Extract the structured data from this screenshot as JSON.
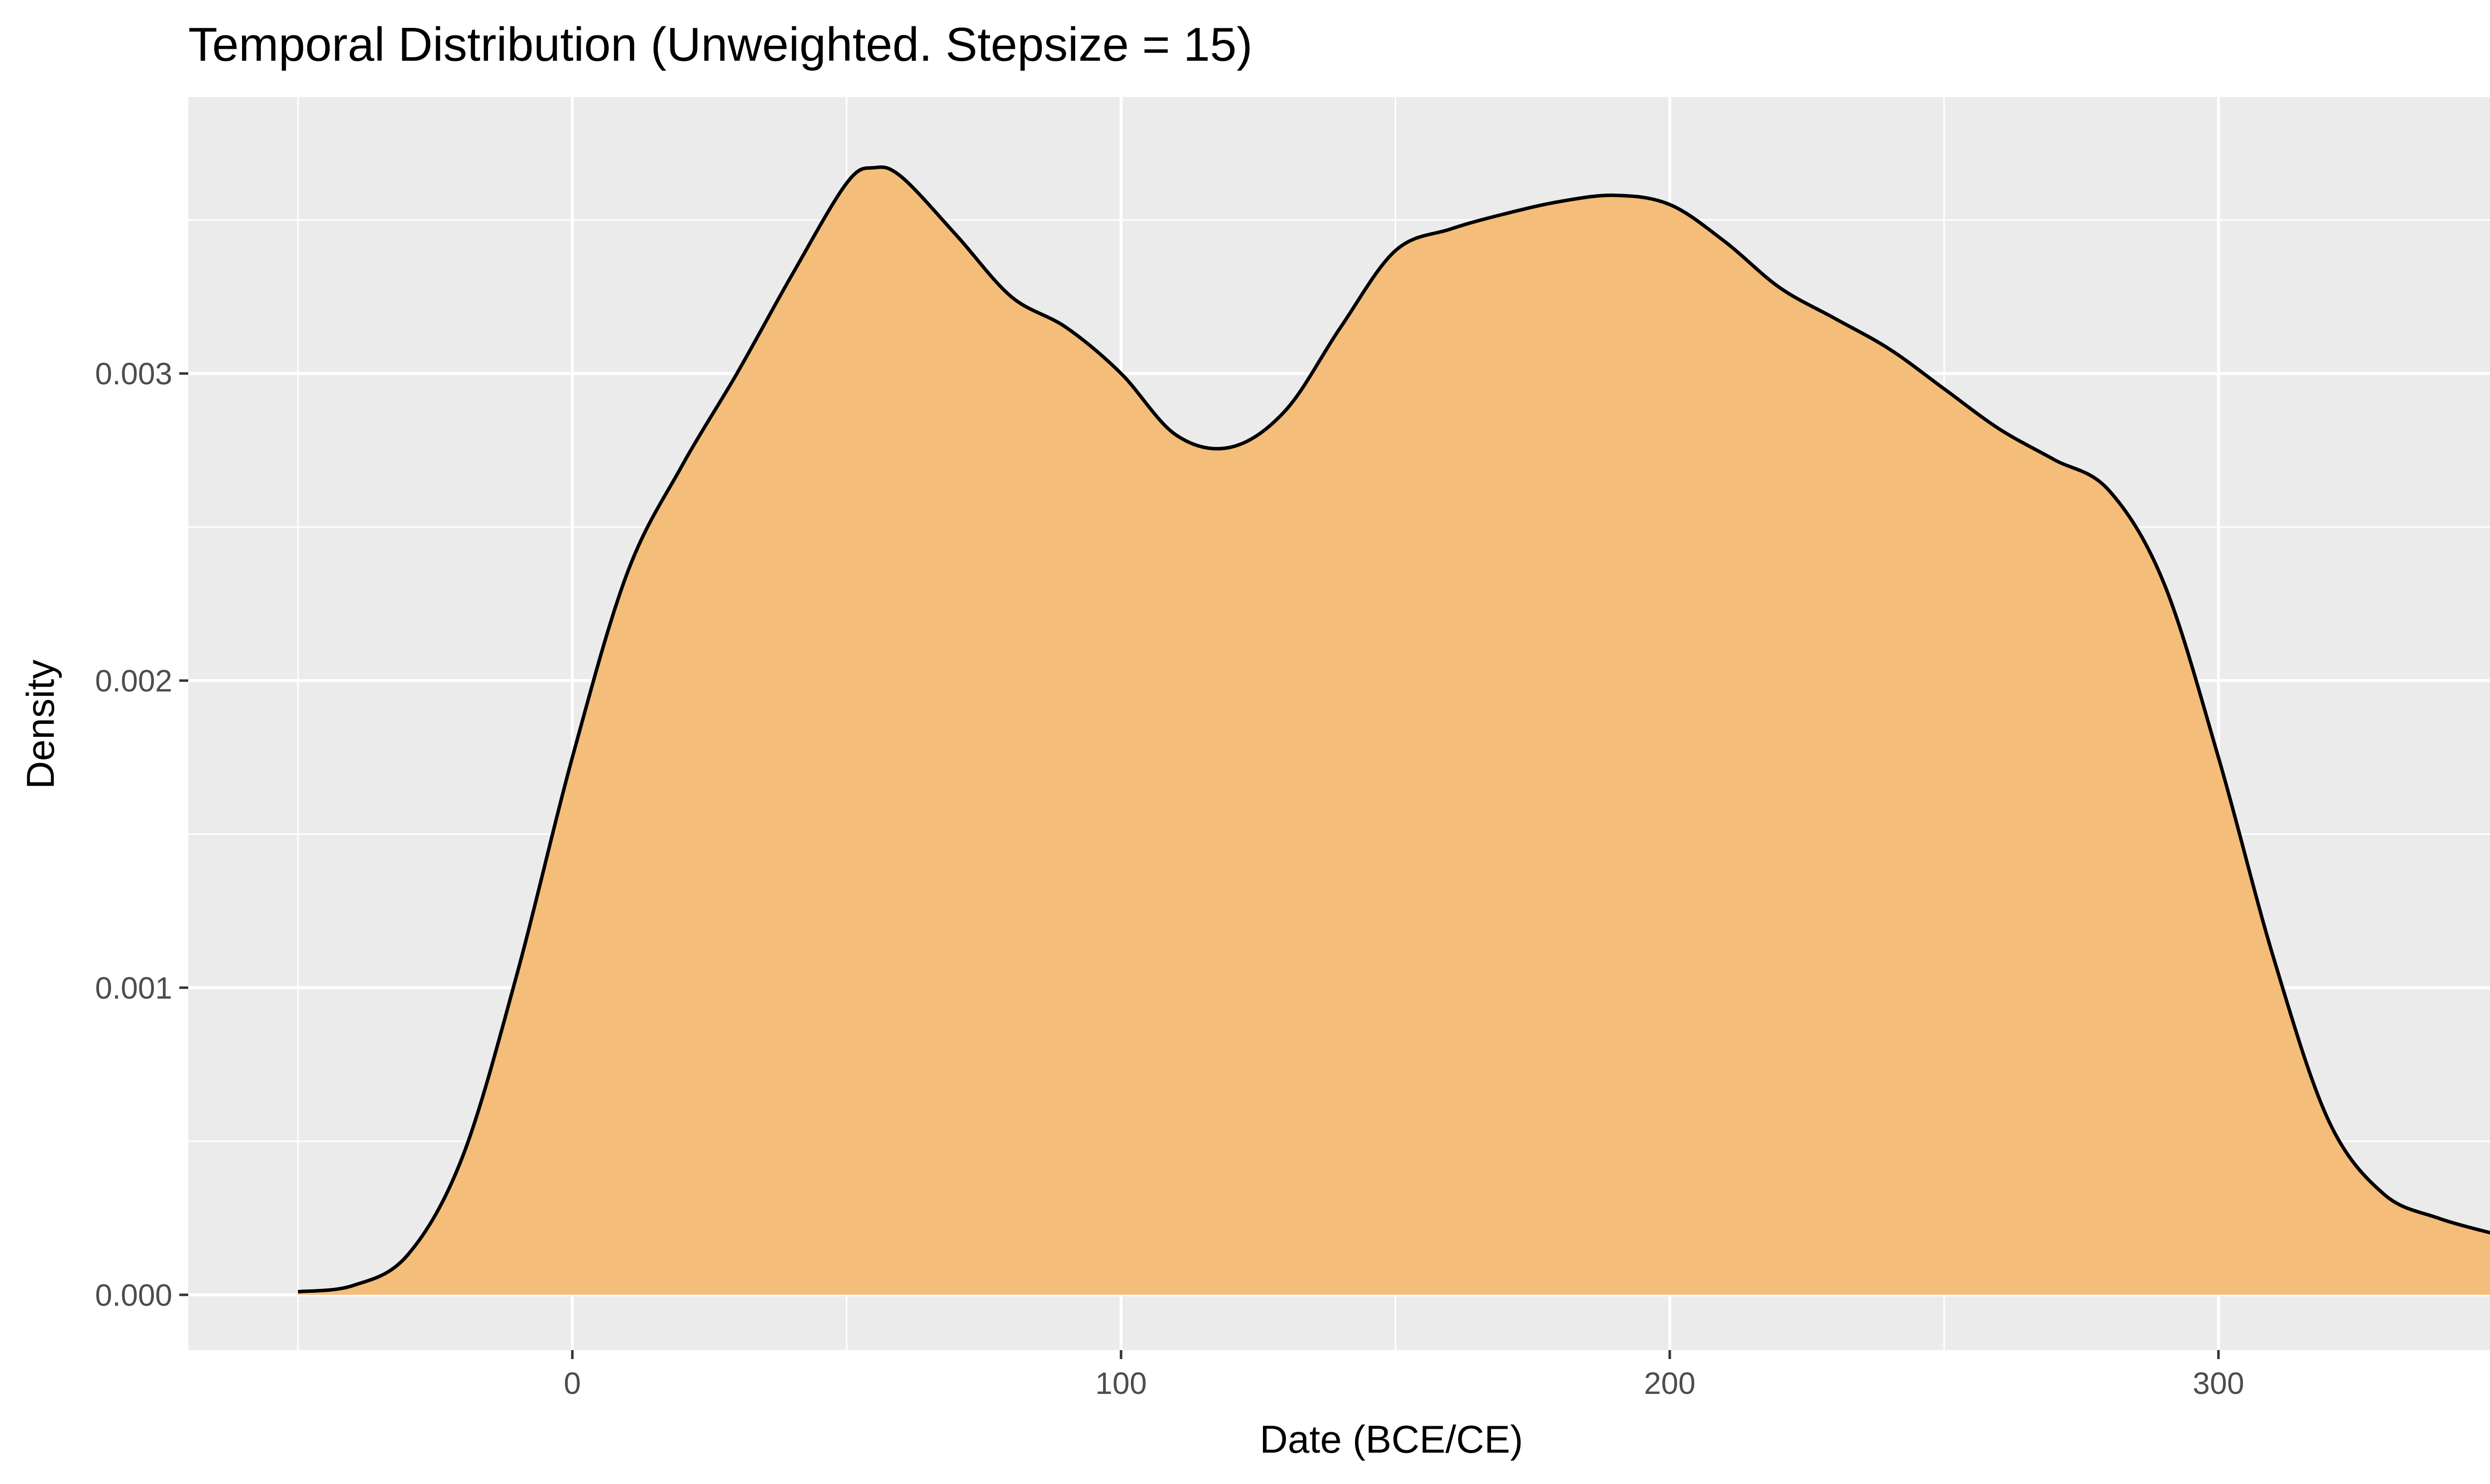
{
  "chart_data": {
    "type": "area",
    "title": "Temporal Distribution (Unweighted. Stepsize = 15)",
    "xlabel": "Date (BCE/CE)",
    "ylabel": "Density",
    "xlim": [
      -70,
      370
    ],
    "ylim": [
      -0.00018,
      0.0039
    ],
    "x_ticks": [
      0,
      100,
      200,
      300
    ],
    "x_tick_labels": [
      "0",
      "100",
      "200",
      "300"
    ],
    "x_minor_ticks": [
      -50,
      50,
      150,
      250,
      350
    ],
    "y_ticks": [
      0.0,
      0.001,
      0.002,
      0.003
    ],
    "y_tick_labels": [
      "0.000",
      "0.001",
      "0.002",
      "0.003"
    ],
    "y_minor_ticks": [
      0.0005,
      0.0015,
      0.0025,
      0.0035
    ],
    "grid": true,
    "legend": "none",
    "fill_color": "#f4b96f",
    "line_color": "#000000",
    "panel_background": "#ebebeb",
    "series": [
      {
        "x": [
          -50,
          -40,
          -30,
          -20,
          -10,
          0,
          10,
          20,
          30,
          40,
          50,
          55,
          60,
          70,
          80,
          90,
          100,
          110,
          120,
          130,
          140,
          150,
          160,
          170,
          180,
          190,
          200,
          210,
          220,
          230,
          240,
          250,
          260,
          270,
          280,
          290,
          300,
          310,
          320,
          330,
          340,
          350
        ],
        "y": [
          1e-05,
          3e-05,
          0.00013,
          0.00045,
          0.00105,
          0.00175,
          0.00235,
          0.0027,
          0.003,
          0.00332,
          0.00362,
          0.00367,
          0.00364,
          0.00345,
          0.00325,
          0.00315,
          0.003,
          0.0028,
          0.00276,
          0.00288,
          0.00315,
          0.0034,
          0.00347,
          0.00352,
          0.00356,
          0.00358,
          0.00355,
          0.00343,
          0.00328,
          0.00318,
          0.00308,
          0.00295,
          0.00282,
          0.00272,
          0.00262,
          0.00232,
          0.00175,
          0.0011,
          0.00057,
          0.00033,
          0.00025,
          0.0002
        ]
      }
    ]
  }
}
